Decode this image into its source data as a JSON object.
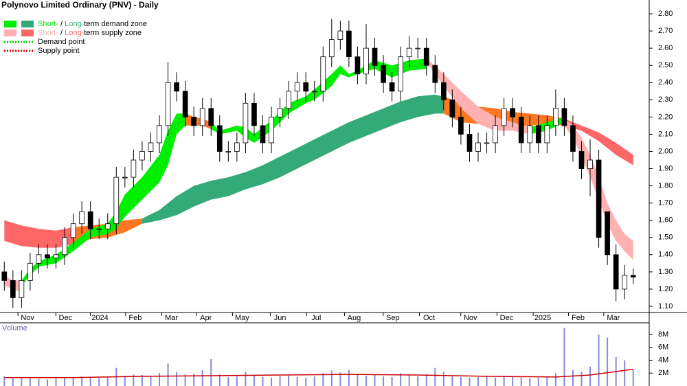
{
  "chart_data": {
    "type": "candlestick",
    "title": "Polynovo Limited Ordinary (PNV) - Daily",
    "legend": [
      {
        "short": "Short-",
        "sep": " / ",
        "long": "Long-",
        "rest": "term demand zone",
        "colors": [
          "#00ee00",
          "#33aa77"
        ]
      },
      {
        "short": "Short-",
        "sep": " / ",
        "long": "Long-",
        "rest": "term supply zone",
        "colors": [
          "#ffb0b0",
          "#ff6666"
        ]
      },
      {
        "text": "Demand point",
        "color": "#00cc00"
      },
      {
        "text": "Supply point",
        "color": "#dd0000"
      }
    ],
    "xlim": [
      -0.5,
      73.5
    ],
    "xticks": [
      {
        "value": 2.7,
        "label": "Nov"
      },
      {
        "value": 7.1,
        "label": "Dec"
      },
      {
        "value": 11.1,
        "label": "2024"
      },
      {
        "value": 15.2,
        "label": "Feb"
      },
      {
        "value": 19.4,
        "label": "Mar"
      },
      {
        "value": 23.4,
        "label": "Apr"
      },
      {
        "value": 27.6,
        "label": "May"
      },
      {
        "value": 32.0,
        "label": "Jun"
      },
      {
        "value": 36.2,
        "label": "Jul"
      },
      {
        "value": 40.6,
        "label": "Aug"
      },
      {
        "value": 45.1,
        "label": "Sep"
      },
      {
        "value": 49.3,
        "label": "Oct"
      },
      {
        "value": 54.1,
        "label": "Nov"
      },
      {
        "value": 58.3,
        "label": "Dec"
      },
      {
        "value": 62.5,
        "label": "2025"
      },
      {
        "value": 66.6,
        "label": "Feb"
      },
      {
        "value": 70.7,
        "label": "Mar"
      }
    ],
    "ylim": [
      1.064,
      2.88
    ],
    "yticks": [
      {
        "value": 1.1,
        "label": "1.10"
      },
      {
        "value": 1.2,
        "label": "1.20"
      },
      {
        "value": 1.3,
        "label": "1.30"
      },
      {
        "value": 1.4,
        "label": "1.40"
      },
      {
        "value": 1.5,
        "label": "1.50"
      },
      {
        "value": 1.6,
        "label": "1.60"
      },
      {
        "value": 1.7,
        "label": "1.70"
      },
      {
        "value": 1.8,
        "label": "1.80"
      },
      {
        "value": 1.9,
        "label": "1.90"
      },
      {
        "value": 2.0,
        "label": "2.00"
      },
      {
        "value": 2.1,
        "label": "2.10"
      },
      {
        "value": 2.2,
        "label": "2.20"
      },
      {
        "value": 2.3,
        "label": "2.30"
      },
      {
        "value": 2.4,
        "label": "2.40"
      },
      {
        "value": 2.5,
        "label": "2.50"
      },
      {
        "value": 2.6,
        "label": "2.60"
      },
      {
        "value": 2.7,
        "label": "2.70"
      },
      {
        "value": 2.8,
        "label": "2.80"
      }
    ],
    "open": [
      1.3,
      1.25,
      1.15,
      1.25,
      1.35,
      1.4,
      1.38,
      1.4,
      1.5,
      1.58,
      1.65,
      1.55,
      1.55,
      1.58,
      1.85,
      1.85,
      1.95,
      2.0,
      2.05,
      2.15,
      2.4,
      2.35,
      2.2,
      2.15,
      2.25,
      2.15,
      2.0,
      2.0,
      2.05,
      2.28,
      2.15,
      2.05,
      2.2,
      2.25,
      2.35,
      2.4,
      2.35,
      2.35,
      2.55,
      2.65,
      2.7,
      2.55,
      2.45,
      2.6,
      2.5,
      2.4,
      2.35,
      2.55,
      2.6,
      2.6,
      2.5,
      2.4,
      2.3,
      2.2,
      2.1,
      2.0,
      2.05,
      2.05,
      2.15,
      2.25,
      2.2,
      2.05,
      2.15,
      2.05,
      2.15,
      2.25,
      2.15,
      2.0,
      1.9,
      1.95,
      1.65,
      1.4,
      1.2,
      1.28
    ],
    "high": [
      1.36,
      1.31,
      1.31,
      1.41,
      1.46,
      1.46,
      1.46,
      1.56,
      1.64,
      1.71,
      1.71,
      1.61,
      1.64,
      1.91,
      1.91,
      2.01,
      2.06,
      2.11,
      2.21,
      2.52,
      2.46,
      2.41,
      2.26,
      2.31,
      2.31,
      2.21,
      2.06,
      2.11,
      2.34,
      2.34,
      2.21,
      2.26,
      2.31,
      2.41,
      2.46,
      2.46,
      2.41,
      2.61,
      2.77,
      2.76,
      2.76,
      2.61,
      2.74,
      2.66,
      2.56,
      2.46,
      2.61,
      2.67,
      2.66,
      2.66,
      2.56,
      2.46,
      2.36,
      2.26,
      2.16,
      2.11,
      2.11,
      2.21,
      2.31,
      2.31,
      2.26,
      2.21,
      2.21,
      2.21,
      2.36,
      2.31,
      2.21,
      2.06,
      2.07,
      2.01,
      1.65,
      1.46,
      1.34,
      1.32
    ],
    "low": [
      1.19,
      1.09,
      1.09,
      1.19,
      1.29,
      1.32,
      1.32,
      1.34,
      1.44,
      1.52,
      1.49,
      1.49,
      1.49,
      1.52,
      1.79,
      1.79,
      1.89,
      1.94,
      1.99,
      2.09,
      2.29,
      2.14,
      2.09,
      2.09,
      2.09,
      1.94,
      1.94,
      1.94,
      1.99,
      2.09,
      1.99,
      1.99,
      2.14,
      2.19,
      2.29,
      2.29,
      2.29,
      2.29,
      2.49,
      2.59,
      2.49,
      2.39,
      2.39,
      2.44,
      2.34,
      2.29,
      2.29,
      2.49,
      2.54,
      2.44,
      2.34,
      2.24,
      2.14,
      2.04,
      1.94,
      1.94,
      1.99,
      1.99,
      2.09,
      2.14,
      1.99,
      1.99,
      1.99,
      1.99,
      2.09,
      2.09,
      1.94,
      1.84,
      1.74,
      1.44,
      1.34,
      1.13,
      1.14,
      1.23
    ],
    "close": [
      1.25,
      1.15,
      1.25,
      1.35,
      1.4,
      1.38,
      1.4,
      1.5,
      1.58,
      1.65,
      1.55,
      1.55,
      1.58,
      1.85,
      1.85,
      1.95,
      2.0,
      2.05,
      2.15,
      2.4,
      2.35,
      2.2,
      2.15,
      2.25,
      2.15,
      2.0,
      2.0,
      2.05,
      2.28,
      2.15,
      2.05,
      2.2,
      2.25,
      2.35,
      2.4,
      2.35,
      2.35,
      2.55,
      2.65,
      2.7,
      2.55,
      2.45,
      2.6,
      2.5,
      2.4,
      2.35,
      2.55,
      2.6,
      2.6,
      2.5,
      2.4,
      2.3,
      2.2,
      2.1,
      2.0,
      2.05,
      2.05,
      2.15,
      2.25,
      2.2,
      2.05,
      2.15,
      2.05,
      2.15,
      2.25,
      2.15,
      2.0,
      1.9,
      1.95,
      1.5,
      1.4,
      1.2,
      1.28,
      1.27
    ],
    "zones": [
      {
        "color": "#ff6666",
        "x": [
          0,
          2,
          4,
          6,
          8
        ],
        "upper": [
          1.6,
          1.57,
          1.55,
          1.54,
          1.56
        ],
        "lower": [
          1.48,
          1.45,
          1.44,
          1.44,
          1.46
        ]
      },
      {
        "color": "#ff7722",
        "x": [
          8,
          10,
          12,
          14,
          16
        ],
        "upper": [
          1.56,
          1.57,
          1.58,
          1.6,
          1.61
        ],
        "lower": [
          1.46,
          1.49,
          1.5,
          1.53,
          1.58
        ]
      },
      {
        "color": "#33aa77",
        "x": [
          16,
          18,
          20,
          22,
          24,
          26,
          28,
          30,
          32,
          34,
          36,
          38,
          40,
          42,
          44,
          46,
          48,
          50,
          51
        ],
        "upper": [
          1.61,
          1.66,
          1.74,
          1.8,
          1.83,
          1.85,
          1.88,
          1.92,
          1.97,
          2.02,
          2.07,
          2.12,
          2.17,
          2.21,
          2.25,
          2.29,
          2.32,
          2.33,
          2.32
        ],
        "lower": [
          1.58,
          1.6,
          1.63,
          1.68,
          1.72,
          1.74,
          1.78,
          1.81,
          1.85,
          1.9,
          1.95,
          2.0,
          2.05,
          2.09,
          2.13,
          2.17,
          2.2,
          2.22,
          2.22
        ]
      },
      {
        "color": "#ff7722",
        "x": [
          51,
          53,
          55,
          57,
          59,
          61,
          63,
          65
        ],
        "upper": [
          2.32,
          2.28,
          2.26,
          2.25,
          2.23,
          2.22,
          2.21,
          2.19
        ],
        "lower": [
          2.22,
          2.17,
          2.16,
          2.15,
          2.15,
          2.15,
          2.16,
          2.15
        ]
      },
      {
        "color": "#ff6666",
        "x": [
          65,
          67,
          69,
          71,
          73
        ],
        "upper": [
          2.19,
          2.15,
          2.11,
          2.05,
          1.98
        ],
        "lower": [
          2.15,
          2.12,
          2.06,
          1.98,
          1.92
        ]
      },
      {
        "color": "#ffb0b0",
        "x": [
          0,
          1,
          2
        ],
        "upper": [
          1.28,
          1.25,
          1.25
        ],
        "lower": [
          1.22,
          1.2,
          1.18
        ]
      },
      {
        "color": "#00ee00",
        "x": [
          2,
          3,
          4,
          6,
          8,
          10,
          12,
          13,
          14,
          16,
          18,
          19,
          20,
          21
        ],
        "upper": [
          1.25,
          1.32,
          1.36,
          1.4,
          1.47,
          1.55,
          1.58,
          1.65,
          1.75,
          1.85,
          1.98,
          2.12,
          2.22,
          2.22
        ],
        "lower": [
          1.22,
          1.28,
          1.33,
          1.35,
          1.42,
          1.5,
          1.52,
          1.55,
          1.62,
          1.72,
          1.82,
          1.92,
          2.1,
          2.15
        ]
      },
      {
        "color": "#ff7722",
        "x": [
          21,
          22,
          23,
          24
        ],
        "upper": [
          2.22,
          2.2,
          2.19,
          2.17
        ],
        "lower": [
          2.15,
          2.15,
          2.15,
          2.13
        ]
      },
      {
        "color": "#00ee00",
        "x": [
          24,
          25,
          27,
          28,
          29,
          31,
          33,
          35,
          36,
          38,
          39,
          40,
          41,
          43,
          45,
          47,
          49
        ],
        "upper": [
          2.17,
          2.12,
          2.15,
          2.14,
          2.1,
          2.18,
          2.28,
          2.32,
          2.36,
          2.45,
          2.5,
          2.45,
          2.47,
          2.53,
          2.5,
          2.53,
          2.54
        ],
        "lower": [
          2.13,
          2.1,
          2.12,
          2.08,
          2.05,
          2.12,
          2.22,
          2.28,
          2.3,
          2.38,
          2.45,
          2.43,
          2.45,
          2.48,
          2.43,
          2.47,
          2.48
        ]
      },
      {
        "color": "#ffb0b0",
        "x": [
          49,
          51,
          53,
          55,
          57,
          59,
          61
        ],
        "upper": [
          2.54,
          2.45,
          2.35,
          2.26,
          2.2,
          2.17,
          2.14
        ],
        "lower": [
          2.52,
          2.38,
          2.25,
          2.16,
          2.12,
          2.12,
          2.1
        ]
      },
      {
        "color": "#00ee00",
        "x": [
          61,
          63,
          65
        ],
        "upper": [
          2.14,
          2.17,
          2.2
        ],
        "lower": [
          2.1,
          2.12,
          2.17
        ]
      },
      {
        "color": "#ffb0b0",
        "x": [
          65,
          66,
          67,
          68,
          69,
          70,
          71,
          72,
          73
        ],
        "upper": [
          2.19,
          2.15,
          2.08,
          1.98,
          1.85,
          1.7,
          1.6,
          1.52,
          1.48
        ],
        "lower": [
          2.15,
          2.08,
          1.97,
          1.85,
          1.72,
          1.58,
          1.48,
          1.42,
          1.37
        ]
      }
    ],
    "volume_label": "Volume",
    "volume": [
      1500000,
      1200000,
      1400000,
      1300000,
      1100000,
      1000000,
      1200000,
      1300000,
      1400000,
      1500000,
      1300000,
      1200000,
      1400000,
      2800000,
      1600000,
      1800000,
      1700000,
      1500000,
      2000000,
      3500000,
      2200000,
      1800000,
      1900000,
      2500000,
      4200000,
      1800000,
      1400000,
      1500000,
      2200000,
      1600000,
      1400000,
      1300000,
      1500000,
      1600000,
      1400000,
      1300000,
      1500000,
      2000000,
      2400000,
      2100000,
      2500000,
      1800000,
      1600000,
      1700000,
      1500000,
      1400000,
      2000000,
      1700000,
      1500000,
      1800000,
      2800000,
      2200000,
      1500000,
      1400000,
      1300000,
      1400000,
      1500000,
      1300000,
      1600000,
      1400000,
      1300000,
      1200000,
      1300000,
      1400000,
      2000000,
      9000000,
      2500000,
      2200000,
      3000000,
      8000000,
      7500000,
      4500000,
      4000000,
      2500000
    ],
    "volume_color": "#8888dd",
    "volume_ma": {
      "color": "#cc0000",
      "x": [
        0,
        8,
        16,
        24,
        32,
        40,
        48,
        56,
        64,
        68,
        73
      ],
      "values": [
        1300000,
        1300000,
        1500000,
        1600000,
        1700000,
        1800000,
        1700000,
        1500000,
        1400000,
        1700000,
        2600000
      ]
    },
    "vlim": [
      0,
      9800000
    ],
    "vticks": [
      {
        "value": 2000000,
        "label": "2M"
      },
      {
        "value": 4000000,
        "label": "4M"
      },
      {
        "value": 6000000,
        "label": "6M"
      },
      {
        "value": 8000000,
        "label": "8M"
      }
    ]
  }
}
